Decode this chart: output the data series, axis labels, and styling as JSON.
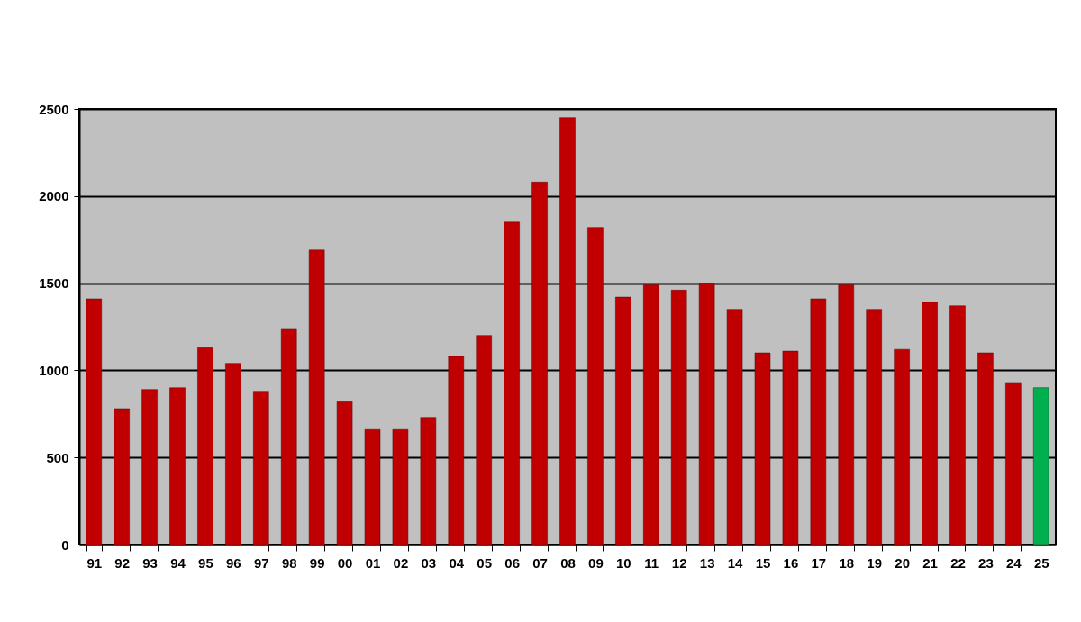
{
  "chart_data": {
    "type": "bar",
    "categories": [
      "91",
      "92",
      "93",
      "94",
      "95",
      "96",
      "97",
      "98",
      "99",
      "00",
      "01",
      "02",
      "03",
      "04",
      "05",
      "06",
      "07",
      "08",
      "09",
      "10",
      "11",
      "12",
      "13",
      "14",
      "15",
      "16",
      "17",
      "18",
      "19",
      "20",
      "21",
      "22",
      "23",
      "24",
      "25"
    ],
    "values": [
      1410,
      780,
      890,
      900,
      1130,
      1040,
      880,
      1240,
      1690,
      820,
      660,
      660,
      730,
      1080,
      1200,
      1850,
      2080,
      2450,
      1820,
      1420,
      1490,
      1460,
      1500,
      1350,
      1100,
      1110,
      1410,
      1490,
      1350,
      1120,
      1390,
      1370,
      1100,
      930,
      900
    ],
    "colors": [
      "#c00000",
      "#c00000",
      "#c00000",
      "#c00000",
      "#c00000",
      "#c00000",
      "#c00000",
      "#c00000",
      "#c00000",
      "#c00000",
      "#c00000",
      "#c00000",
      "#c00000",
      "#c00000",
      "#c00000",
      "#c00000",
      "#c00000",
      "#c00000",
      "#c00000",
      "#c00000",
      "#c00000",
      "#c00000",
      "#c00000",
      "#c00000",
      "#c00000",
      "#c00000",
      "#c00000",
      "#c00000",
      "#c00000",
      "#c00000",
      "#c00000",
      "#c00000",
      "#c00000",
      "#c00000",
      "#00b050"
    ],
    "ylim": [
      0,
      2500
    ],
    "yticks": [
      0,
      500,
      1000,
      1500,
      2000,
      2500
    ],
    "grid": "y"
  }
}
